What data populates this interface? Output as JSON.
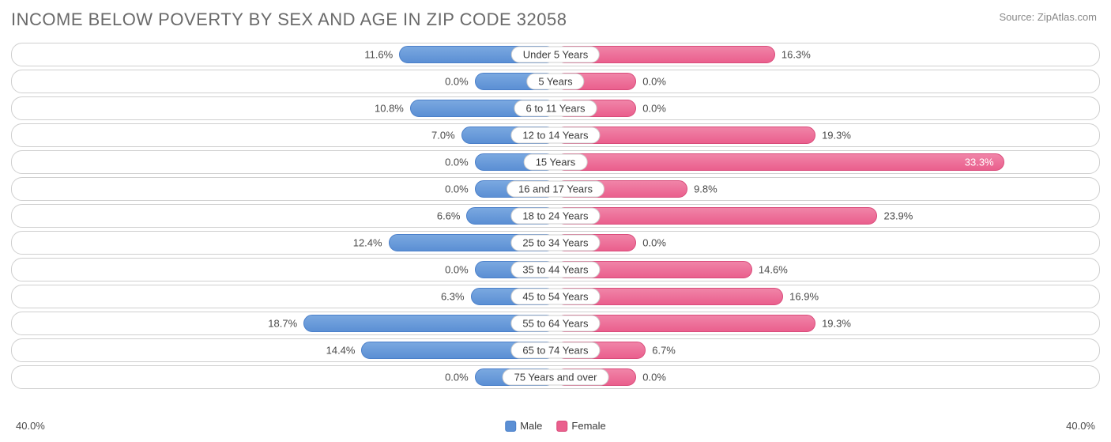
{
  "title": "INCOME BELOW POVERTY BY SEX AND AGE IN ZIP CODE 32058",
  "source": "Source: ZipAtlas.com",
  "axis_max": 40.0,
  "axis_label": "40.0%",
  "legend": {
    "male": "Male",
    "female": "Female"
  },
  "min_bar_pct": 6.0,
  "colors": {
    "male_fill_top": "#7aa8e0",
    "male_fill_bottom": "#5b8fd4",
    "male_border": "#4a7fc9",
    "female_fill_top": "#f084a8",
    "female_fill_bottom": "#ea5f8d",
    "female_border": "#d94b7a",
    "row_border": "#cfcfcf",
    "text": "#4a4a4a",
    "title_text": "#6a6a6a",
    "background": "#ffffff"
  },
  "rows": [
    {
      "label": "Under 5 Years",
      "male": 11.6,
      "female": 16.3
    },
    {
      "label": "5 Years",
      "male": 0.0,
      "female": 0.0
    },
    {
      "label": "6 to 11 Years",
      "male": 10.8,
      "female": 0.0
    },
    {
      "label": "12 to 14 Years",
      "male": 7.0,
      "female": 19.3
    },
    {
      "label": "15 Years",
      "male": 0.0,
      "female": 33.3
    },
    {
      "label": "16 and 17 Years",
      "male": 0.0,
      "female": 9.8
    },
    {
      "label": "18 to 24 Years",
      "male": 6.6,
      "female": 23.9
    },
    {
      "label": "25 to 34 Years",
      "male": 12.4,
      "female": 0.0
    },
    {
      "label": "35 to 44 Years",
      "male": 0.0,
      "female": 14.6
    },
    {
      "label": "45 to 54 Years",
      "male": 6.3,
      "female": 16.9
    },
    {
      "label": "55 to 64 Years",
      "male": 18.7,
      "female": 19.3
    },
    {
      "label": "65 to 74 Years",
      "male": 14.4,
      "female": 6.7
    },
    {
      "label": "75 Years and over",
      "male": 0.0,
      "female": 0.0
    }
  ]
}
